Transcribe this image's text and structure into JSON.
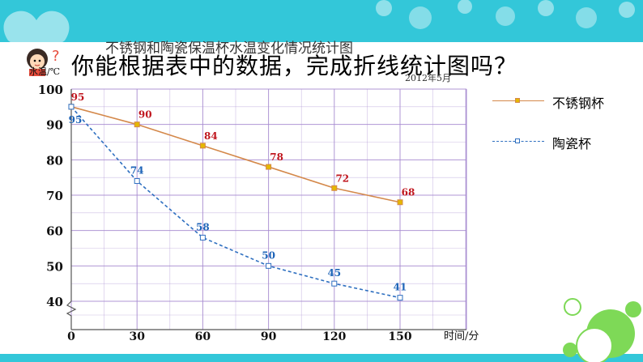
{
  "chart_data": {
    "type": "line",
    "title": "不锈钢和陶瓷保温杯水温变化情况统计图",
    "date_note": "2012年5月",
    "ylabel": "水温/℃",
    "xlabel": "时间/分",
    "x": [
      0,
      30,
      60,
      90,
      120,
      150
    ],
    "y_ticks": [
      100,
      90,
      80,
      70,
      60,
      50,
      40
    ],
    "x_ticks": [
      "0",
      "30",
      "60",
      "90",
      "120",
      "150"
    ],
    "ylim": [
      40,
      100
    ],
    "y_axis_break": true,
    "grid": true,
    "legend_position": "right",
    "series": [
      {
        "name": "不锈钢杯",
        "values": [
          95,
          90,
          84,
          78,
          72,
          68
        ],
        "color": "#d4884a",
        "label_color": "#c0161e",
        "marker_color": "#e5b800",
        "style": "solid"
      },
      {
        "name": "陶瓷杯",
        "values": [
          95,
          74,
          58,
          50,
          45,
          41
        ],
        "color": "#2e6fc0",
        "label_color": "#1e64b8",
        "marker_color": "#2e6fc0",
        "style": "dashed"
      }
    ]
  },
  "question": "你能根据表中的数据，完成折线统计图吗？",
  "colors": {
    "band": "#33c7d9",
    "grid": "#a78bd0",
    "axis": "#555555"
  },
  "icons": [
    "girl-question-icon",
    "heart-deco-icon",
    "bubbles-deco-icon"
  ]
}
